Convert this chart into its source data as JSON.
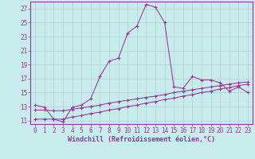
{
  "xlabel": "Windchill (Refroidissement éolien,°C)",
  "background_color": "#c8ecec",
  "grid_color": "#b0d0d0",
  "line_color": "#993399",
  "x_ticks": [
    0,
    1,
    2,
    3,
    4,
    5,
    6,
    7,
    8,
    9,
    10,
    11,
    12,
    13,
    14,
    15,
    16,
    17,
    18,
    19,
    20,
    21,
    22,
    23
  ],
  "y_ticks": [
    11,
    13,
    15,
    17,
    19,
    21,
    23,
    25,
    27
  ],
  "xlim": [
    -0.5,
    23.5
  ],
  "ylim": [
    10.5,
    28.0
  ],
  "line1_x": [
    0,
    1,
    2,
    3,
    4,
    5,
    6,
    7,
    8,
    9,
    10,
    11,
    12,
    13,
    14,
    15,
    16,
    17,
    18,
    19,
    20,
    21,
    22,
    23
  ],
  "line1_y": [
    13.2,
    12.9,
    11.2,
    10.8,
    12.9,
    13.2,
    14.1,
    17.3,
    19.5,
    19.9,
    23.5,
    24.5,
    27.6,
    27.2,
    25.0,
    15.8,
    15.6,
    17.3,
    16.8,
    16.8,
    16.4,
    15.2,
    15.8,
    15.0
  ],
  "line2_x": [
    0,
    1,
    2,
    3,
    4,
    5,
    6,
    7,
    8,
    9,
    10,
    11,
    12,
    13,
    14,
    15,
    16,
    17,
    18,
    19,
    20,
    21,
    22,
    23
  ],
  "line2_y": [
    12.5,
    12.5,
    12.4,
    12.4,
    12.6,
    12.8,
    13.0,
    13.2,
    13.5,
    13.7,
    13.9,
    14.1,
    14.3,
    14.5,
    14.7,
    15.0,
    15.2,
    15.4,
    15.6,
    15.8,
    16.0,
    16.2,
    16.4,
    16.5
  ],
  "line3_x": [
    0,
    1,
    2,
    3,
    4,
    5,
    6,
    7,
    8,
    9,
    10,
    11,
    12,
    13,
    14,
    15,
    16,
    17,
    18,
    19,
    20,
    21,
    22,
    23
  ],
  "line3_y": [
    11.2,
    11.2,
    11.2,
    11.2,
    11.5,
    11.7,
    12.0,
    12.2,
    12.5,
    12.7,
    13.0,
    13.2,
    13.5,
    13.7,
    14.0,
    14.2,
    14.5,
    14.7,
    15.0,
    15.2,
    15.5,
    15.7,
    16.0,
    16.2
  ],
  "tick_fontsize": 5.5,
  "xlabel_fontsize": 6.0,
  "marker": "+"
}
